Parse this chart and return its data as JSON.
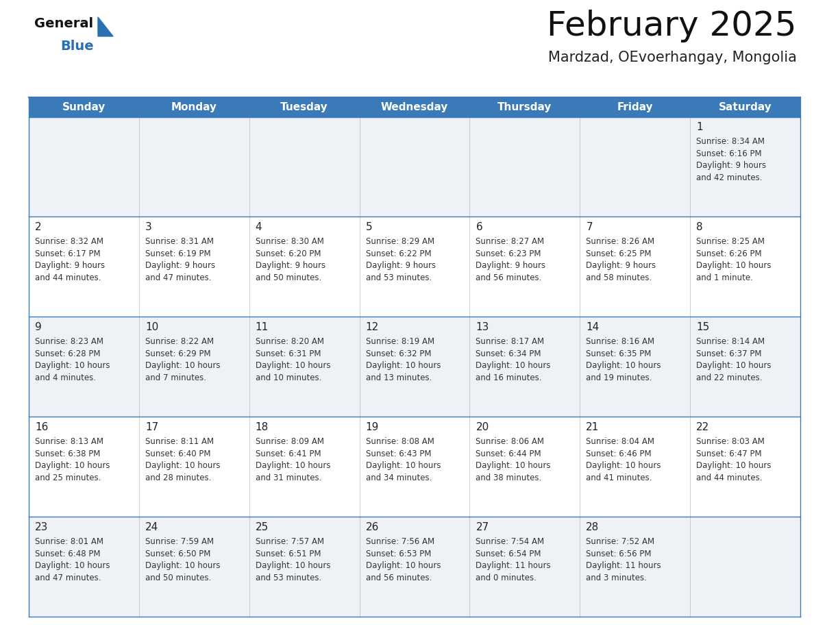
{
  "title": "February 2025",
  "subtitle": "Mardzad, OEvoerhangay, Mongolia",
  "header_bg_color": "#3a7ab8",
  "header_text_color": "#ffffff",
  "row_bg_even": "#eef2f7",
  "row_bg_odd": "#ffffff",
  "border_color": "#3a7ab8",
  "day_number_color": "#222222",
  "info_text_color": "#333333",
  "days_of_week": [
    "Sunday",
    "Monday",
    "Tuesday",
    "Wednesday",
    "Thursday",
    "Friday",
    "Saturday"
  ],
  "calendar": [
    [
      null,
      null,
      null,
      null,
      null,
      null,
      {
        "day": "1",
        "sunrise": "8:34 AM",
        "sunset": "6:16 PM",
        "daylight_h": "9 hours",
        "daylight_m": "42 minutes."
      }
    ],
    [
      {
        "day": "2",
        "sunrise": "8:32 AM",
        "sunset": "6:17 PM",
        "daylight_h": "9 hours",
        "daylight_m": "44 minutes."
      },
      {
        "day": "3",
        "sunrise": "8:31 AM",
        "sunset": "6:19 PM",
        "daylight_h": "9 hours",
        "daylight_m": "47 minutes."
      },
      {
        "day": "4",
        "sunrise": "8:30 AM",
        "sunset": "6:20 PM",
        "daylight_h": "9 hours",
        "daylight_m": "50 minutes."
      },
      {
        "day": "5",
        "sunrise": "8:29 AM",
        "sunset": "6:22 PM",
        "daylight_h": "9 hours",
        "daylight_m": "53 minutes."
      },
      {
        "day": "6",
        "sunrise": "8:27 AM",
        "sunset": "6:23 PM",
        "daylight_h": "9 hours",
        "daylight_m": "56 minutes."
      },
      {
        "day": "7",
        "sunrise": "8:26 AM",
        "sunset": "6:25 PM",
        "daylight_h": "9 hours",
        "daylight_m": "58 minutes."
      },
      {
        "day": "8",
        "sunrise": "8:25 AM",
        "sunset": "6:26 PM",
        "daylight_h": "10 hours",
        "daylight_m": "1 minute."
      }
    ],
    [
      {
        "day": "9",
        "sunrise": "8:23 AM",
        "sunset": "6:28 PM",
        "daylight_h": "10 hours",
        "daylight_m": "4 minutes."
      },
      {
        "day": "10",
        "sunrise": "8:22 AM",
        "sunset": "6:29 PM",
        "daylight_h": "10 hours",
        "daylight_m": "7 minutes."
      },
      {
        "day": "11",
        "sunrise": "8:20 AM",
        "sunset": "6:31 PM",
        "daylight_h": "10 hours",
        "daylight_m": "10 minutes."
      },
      {
        "day": "12",
        "sunrise": "8:19 AM",
        "sunset": "6:32 PM",
        "daylight_h": "10 hours",
        "daylight_m": "13 minutes."
      },
      {
        "day": "13",
        "sunrise": "8:17 AM",
        "sunset": "6:34 PM",
        "daylight_h": "10 hours",
        "daylight_m": "16 minutes."
      },
      {
        "day": "14",
        "sunrise": "8:16 AM",
        "sunset": "6:35 PM",
        "daylight_h": "10 hours",
        "daylight_m": "19 minutes."
      },
      {
        "day": "15",
        "sunrise": "8:14 AM",
        "sunset": "6:37 PM",
        "daylight_h": "10 hours",
        "daylight_m": "22 minutes."
      }
    ],
    [
      {
        "day": "16",
        "sunrise": "8:13 AM",
        "sunset": "6:38 PM",
        "daylight_h": "10 hours",
        "daylight_m": "25 minutes."
      },
      {
        "day": "17",
        "sunrise": "8:11 AM",
        "sunset": "6:40 PM",
        "daylight_h": "10 hours",
        "daylight_m": "28 minutes."
      },
      {
        "day": "18",
        "sunrise": "8:09 AM",
        "sunset": "6:41 PM",
        "daylight_h": "10 hours",
        "daylight_m": "31 minutes."
      },
      {
        "day": "19",
        "sunrise": "8:08 AM",
        "sunset": "6:43 PM",
        "daylight_h": "10 hours",
        "daylight_m": "34 minutes."
      },
      {
        "day": "20",
        "sunrise": "8:06 AM",
        "sunset": "6:44 PM",
        "daylight_h": "10 hours",
        "daylight_m": "38 minutes."
      },
      {
        "day": "21",
        "sunrise": "8:04 AM",
        "sunset": "6:46 PM",
        "daylight_h": "10 hours",
        "daylight_m": "41 minutes."
      },
      {
        "day": "22",
        "sunrise": "8:03 AM",
        "sunset": "6:47 PM",
        "daylight_h": "10 hours",
        "daylight_m": "44 minutes."
      }
    ],
    [
      {
        "day": "23",
        "sunrise": "8:01 AM",
        "sunset": "6:48 PM",
        "daylight_h": "10 hours",
        "daylight_m": "47 minutes."
      },
      {
        "day": "24",
        "sunrise": "7:59 AM",
        "sunset": "6:50 PM",
        "daylight_h": "10 hours",
        "daylight_m": "50 minutes."
      },
      {
        "day": "25",
        "sunrise": "7:57 AM",
        "sunset": "6:51 PM",
        "daylight_h": "10 hours",
        "daylight_m": "53 minutes."
      },
      {
        "day": "26",
        "sunrise": "7:56 AM",
        "sunset": "6:53 PM",
        "daylight_h": "10 hours",
        "daylight_m": "56 minutes."
      },
      {
        "day": "27",
        "sunrise": "7:54 AM",
        "sunset": "6:54 PM",
        "daylight_h": "11 hours",
        "daylight_m": "0 minutes."
      },
      {
        "day": "28",
        "sunrise": "7:52 AM",
        "sunset": "6:56 PM",
        "daylight_h": "11 hours",
        "daylight_m": "3 minutes."
      },
      null
    ]
  ],
  "logo_text_general": "General",
  "logo_text_blue": "Blue",
  "logo_color_general": "#111111",
  "logo_color_blue": "#2a6faf",
  "logo_triangle_color": "#2a6faf",
  "title_fontsize": 36,
  "subtitle_fontsize": 15,
  "dow_fontsize": 11,
  "day_num_fontsize": 11,
  "info_fontsize": 8.5
}
